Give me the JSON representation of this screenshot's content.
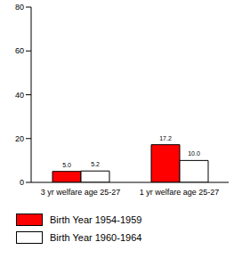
{
  "chart_data": {
    "type": "bar",
    "categories": [
      "3 yr welfare age 25-27",
      "1 yr welfare age 25-27"
    ],
    "series": [
      {
        "name": "Birth Year 1954-1959",
        "color": "#ff0000",
        "values": [
          5.0,
          17.2
        ],
        "value_labels": [
          "5.0",
          "17.2"
        ]
      },
      {
        "name": "Birth Year 1960-1964",
        "color": "#ffffff",
        "values": [
          5.2,
          10.0
        ],
        "value_labels": [
          "5.2",
          "10.0"
        ]
      }
    ],
    "ylim": [
      0,
      80
    ],
    "yticks": [
      0,
      20,
      40,
      60,
      80
    ],
    "grid": false,
    "legend": "bottom",
    "data_labels": true
  }
}
